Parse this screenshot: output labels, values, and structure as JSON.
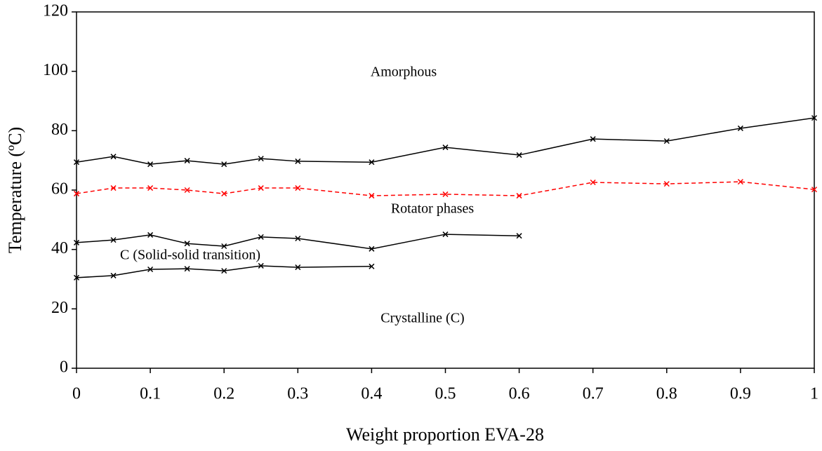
{
  "chart_data": {
    "type": "line",
    "x_label": "Weight proportion EVA-28",
    "y_label": "Temperature (ºC)",
    "x": [
      0,
      0.05,
      0.1,
      0.15,
      0.2,
      0.25,
      0.3,
      0.4,
      0.5,
      0.6,
      0.7,
      0.8,
      0.9,
      1
    ],
    "series": [
      {
        "color": "#000000",
        "line_style": "solid",
        "marker": "x",
        "values": [
          69.4,
          71.3,
          68.7,
          69.9,
          68.7,
          70.6,
          69.7,
          69.4,
          74.4,
          71.8,
          77.2,
          76.5,
          80.8,
          84.3
        ]
      },
      {
        "color": "#ff0000",
        "line_style": "dashed",
        "marker": "x",
        "values": [
          58.8,
          60.7,
          60.7,
          60.0,
          58.8,
          60.7,
          60.7,
          58.1,
          58.6,
          58.1,
          62.6,
          62.1,
          62.8,
          60.2
        ]
      },
      {
        "color": "#000000",
        "line_style": "solid",
        "marker": "x",
        "values": [
          42.3,
          43.2,
          44.9,
          42.0,
          41.1,
          44.2,
          43.7,
          40.2,
          45.1,
          44.6,
          null,
          null,
          null,
          null
        ]
      },
      {
        "color": "#000000",
        "line_style": "solid",
        "marker": "x",
        "values": [
          30.5,
          31.2,
          33.3,
          33.5,
          32.8,
          34.5,
          34.0,
          34.3,
          null,
          null,
          null,
          null,
          null,
          null
        ]
      }
    ],
    "annotations": [
      "Amorphous",
      "Rotator phases",
      "C (Solid-solid transition)",
      "Crystalline (C)"
    ],
    "xlim": [
      0,
      1
    ],
    "ylim": [
      0,
      120
    ],
    "xticks": [
      0,
      0.1,
      0.2,
      0.3,
      0.4,
      0.5,
      0.6,
      0.7,
      0.8,
      0.9,
      1
    ],
    "yticks": [
      0,
      20,
      40,
      60,
      80,
      100,
      120
    ],
    "grid": false,
    "legend": false
  }
}
